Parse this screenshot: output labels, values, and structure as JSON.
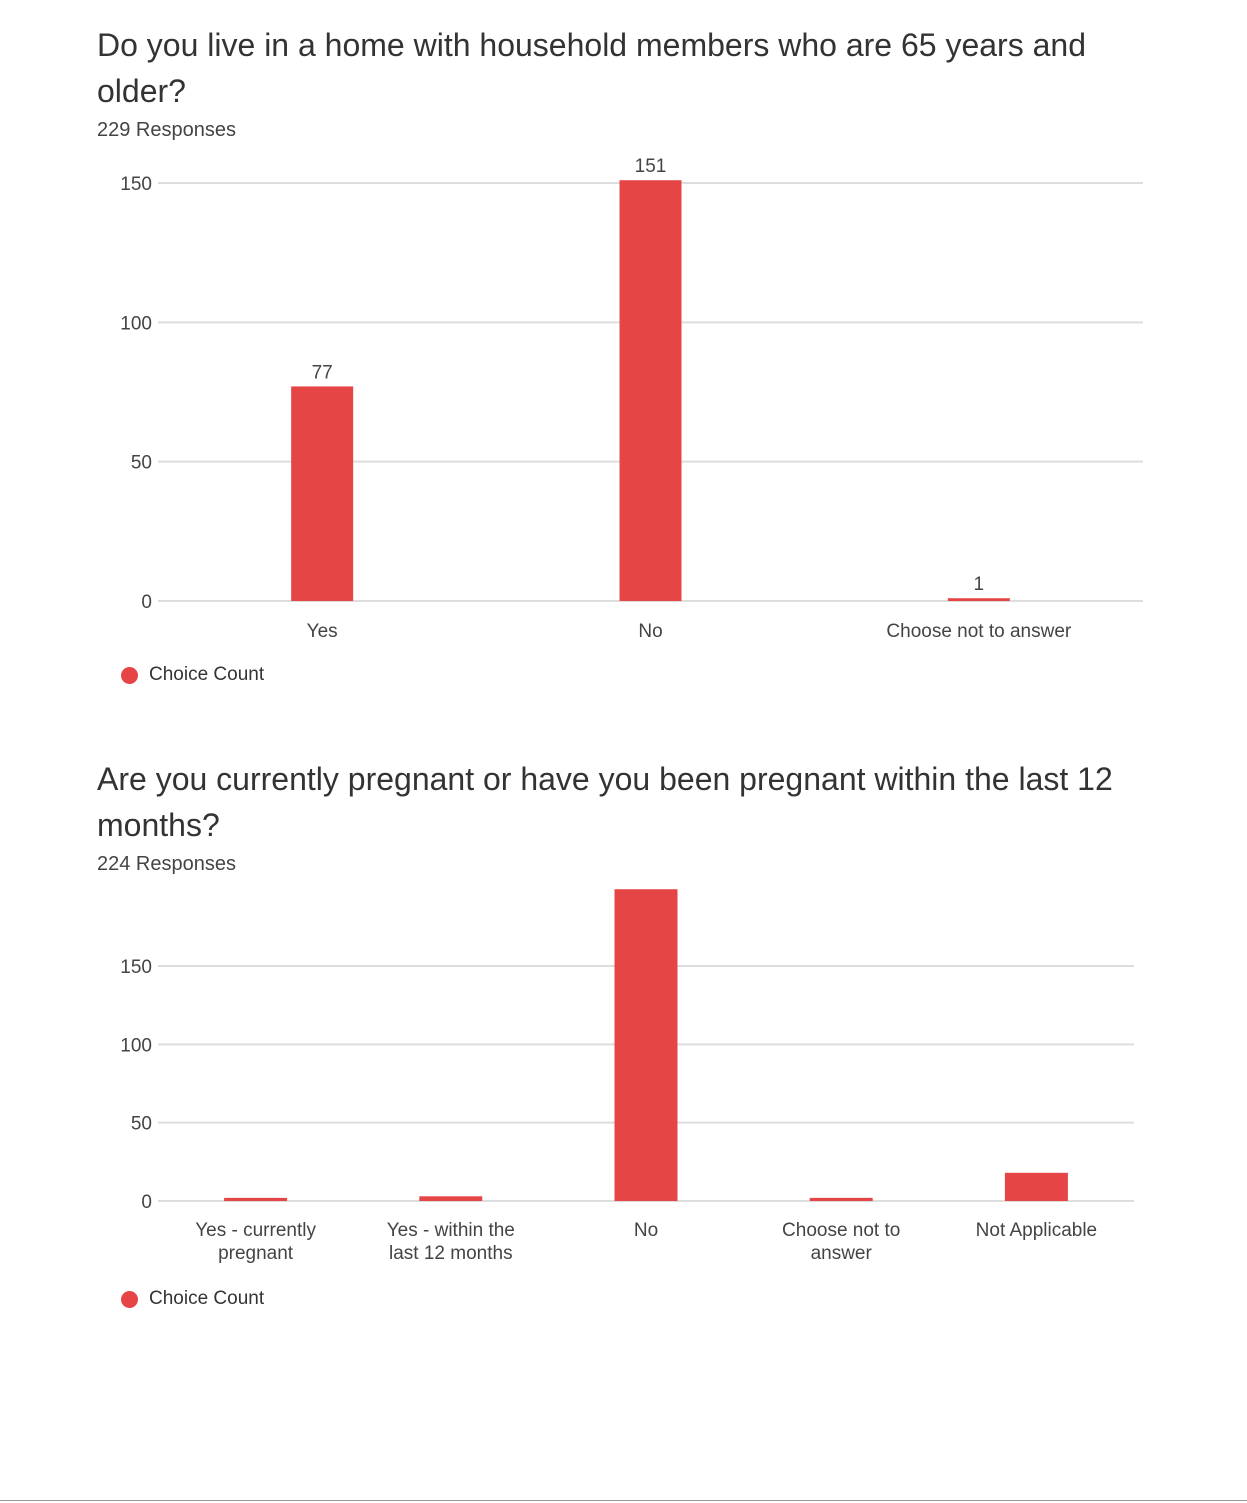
{
  "questions": [
    {
      "title": "Do you live in a home with household members who are 65 years and older?",
      "responses_text": "229 Responses",
      "legend_label": "Choice Count"
    },
    {
      "title": "Are you currently pregnant or have you been pregnant within the last 12 months?",
      "responses_text": "224 Responses",
      "legend_label": "Choice Count"
    }
  ],
  "colors": {
    "bar": "#e64545",
    "grid": "#dddddd",
    "axis_text": "#444444"
  },
  "chart_data": [
    {
      "type": "bar",
      "title": "Do you live in a home with household members who are 65 years and older?",
      "categories": [
        "Yes",
        "No",
        "Choose not to answer"
      ],
      "series": [
        {
          "name": "Choice Count",
          "values": [
            77,
            151,
            1
          ]
        }
      ],
      "data_labels": [
        "77",
        "151",
        "1"
      ],
      "yticks": [
        0,
        50,
        100,
        150
      ],
      "ylim": [
        0,
        150
      ],
      "xlabel": "",
      "ylabel": "",
      "grid": true,
      "legend": "bottom-left"
    },
    {
      "type": "bar",
      "title": "Are you currently pregnant or have you been pregnant within the last 12 months?",
      "categories": [
        [
          "Yes - currently",
          "pregnant"
        ],
        [
          "Yes - within the",
          "last 12 months"
        ],
        [
          "No"
        ],
        [
          "Choose not to",
          "answer"
        ],
        [
          "Not Applicable"
        ]
      ],
      "series": [
        {
          "name": "Choice Count",
          "values": [
            2,
            3,
            199,
            2,
            18
          ]
        }
      ],
      "yticks": [
        0,
        50,
        100,
        150
      ],
      "ylim": [
        0,
        199
      ],
      "xlabel": "",
      "ylabel": "",
      "grid": true,
      "legend": "bottom-left"
    }
  ]
}
